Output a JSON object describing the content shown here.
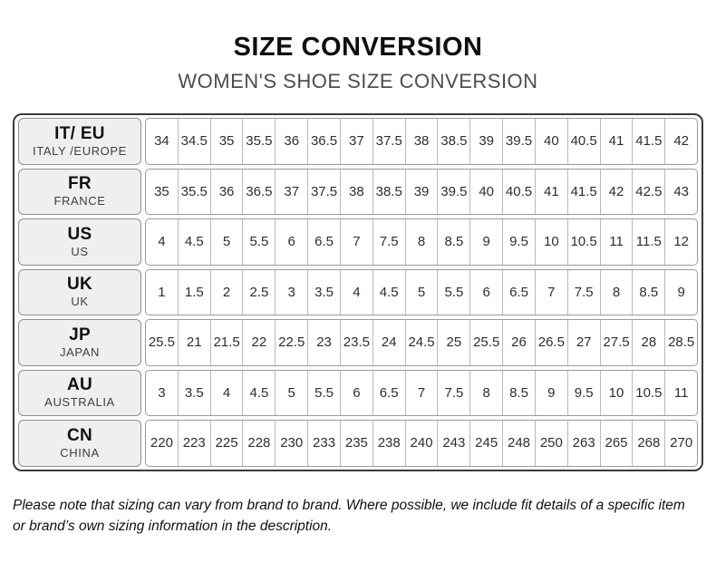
{
  "header": {
    "title": "SIZE CONVERSION",
    "subtitle": "WOMEN'S SHOE SIZE CONVERSION"
  },
  "table": {
    "rows": [
      {
        "code": "IT/ EU",
        "region": "ITALY /EUROPE",
        "values": [
          "34",
          "34.5",
          "35",
          "35.5",
          "36",
          "36.5",
          "37",
          "37.5",
          "38",
          "38.5",
          "39",
          "39.5",
          "40",
          "40.5",
          "41",
          "41.5",
          "42"
        ]
      },
      {
        "code": "FR",
        "region": "FRANCE",
        "values": [
          "35",
          "35.5",
          "36",
          "36.5",
          "37",
          "37.5",
          "38",
          "38.5",
          "39",
          "39.5",
          "40",
          "40.5",
          "41",
          "41.5",
          "42",
          "42.5",
          "43"
        ]
      },
      {
        "code": "US",
        "region": "US",
        "values": [
          "4",
          "4.5",
          "5",
          "5.5",
          "6",
          "6.5",
          "7",
          "7.5",
          "8",
          "8.5",
          "9",
          "9.5",
          "10",
          "10.5",
          "11",
          "11.5",
          "12"
        ]
      },
      {
        "code": "UK",
        "region": "UK",
        "values": [
          "1",
          "1.5",
          "2",
          "2.5",
          "3",
          "3.5",
          "4",
          "4.5",
          "5",
          "5.5",
          "6",
          "6.5",
          "7",
          "7.5",
          "8",
          "8.5",
          "9"
        ]
      },
      {
        "code": "JP",
        "region": "JAPAN",
        "values": [
          "25.5",
          "21",
          "21.5",
          "22",
          "22.5",
          "23",
          "23.5",
          "24",
          "24.5",
          "25",
          "25.5",
          "26",
          "26.5",
          "27",
          "27.5",
          "28",
          "28.5"
        ]
      },
      {
        "code": "AU",
        "region": "AUSTRALIA",
        "values": [
          "3",
          "3.5",
          "4",
          "4.5",
          "5",
          "5.5",
          "6",
          "6.5",
          "7",
          "7.5",
          "8",
          "8.5",
          "9",
          "9.5",
          "10",
          "10.5",
          "11"
        ]
      },
      {
        "code": "CN",
        "region": "CHINA",
        "values": [
          "220",
          "223",
          "225",
          "228",
          "230",
          "233",
          "235",
          "238",
          "240",
          "243",
          "245",
          "248",
          "250",
          "263",
          "265",
          "268",
          "270"
        ]
      }
    ]
  },
  "footer": {
    "note": "Please note that sizing can vary from brand to brand. Where possible, we include fit details of a specific item or brand’s own sizing information in the description."
  },
  "colors": {
    "header_cell_bg": "#efefef",
    "outer_border": "#3a3a3a",
    "inner_border": "#9a9a9a",
    "subtitle_text": "#4d4d4d"
  }
}
